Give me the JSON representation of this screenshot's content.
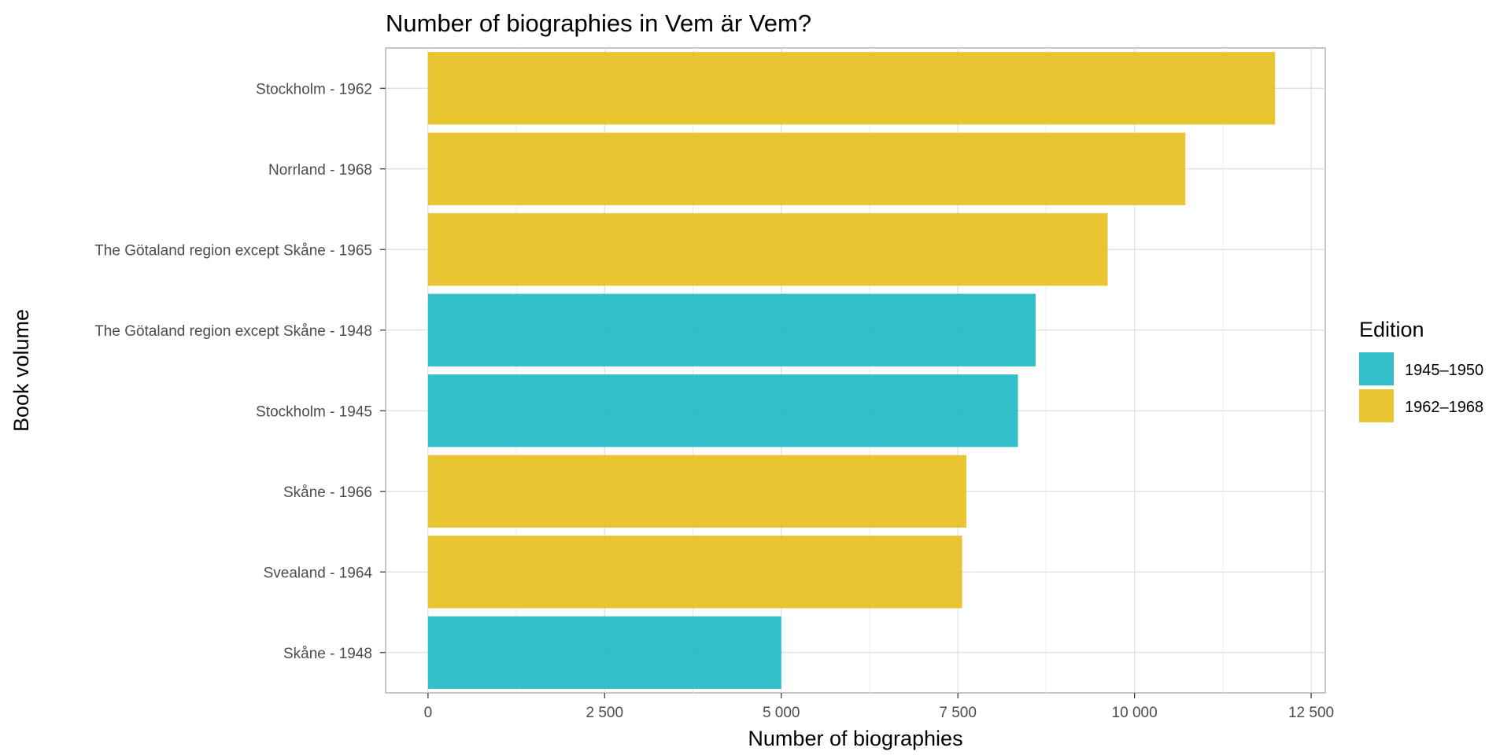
{
  "chart_data": {
    "type": "bar",
    "orientation": "horizontal",
    "title": "Number of biographies in Vem är Vem?",
    "xlabel": "Number of biographies",
    "ylabel": "Book volume",
    "xlim": [
      -600,
      12700
    ],
    "xticks": [
      0,
      2500,
      5000,
      7500,
      10000,
      12500
    ],
    "xtick_labels": [
      "0",
      "2 500",
      "5 000",
      "7 500",
      "10 000",
      "12 500"
    ],
    "grid": true,
    "legend": {
      "title": "Edition",
      "position": "right",
      "entries": [
        {
          "label": "1945–1950",
          "color": "#1cb8c4"
        },
        {
          "label": "1962–1968",
          "color": "#e8bf1c"
        }
      ]
    },
    "bars": [
      {
        "category": "Stockholm - 1962",
        "value": 11990,
        "edition": "1962–1968"
      },
      {
        "category": "Norrland - 1968",
        "value": 10720,
        "edition": "1962–1968"
      },
      {
        "category": "The Götaland region except Skåne - 1965",
        "value": 9620,
        "edition": "1962–1968"
      },
      {
        "category": "The Götaland region except Skåne - 1948",
        "value": 8600,
        "edition": "1945–1950"
      },
      {
        "category": "Stockholm - 1945",
        "value": 8350,
        "edition": "1945–1950"
      },
      {
        "category": "Skåne - 1966",
        "value": 7620,
        "edition": "1962–1968"
      },
      {
        "category": "Svealand - 1964",
        "value": 7560,
        "edition": "1962–1968"
      },
      {
        "category": "Skåne - 1948",
        "value": 5000,
        "edition": "1945–1950"
      }
    ]
  }
}
